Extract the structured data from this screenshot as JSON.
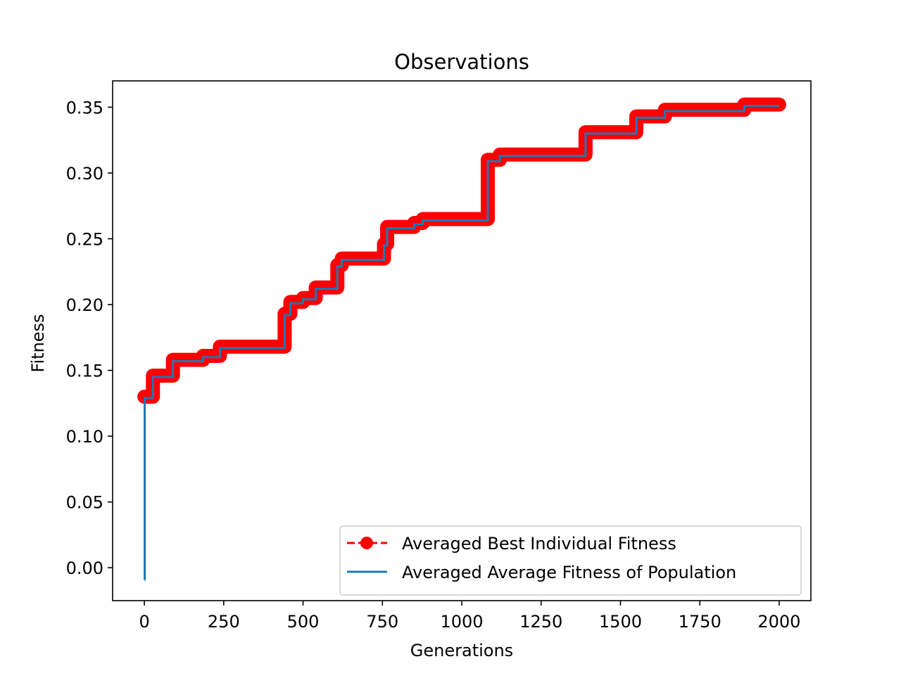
{
  "chart_data": {
    "type": "line",
    "title": "Observations",
    "xlabel": "Generations",
    "ylabel": "Fitness",
    "xlim": [
      -100,
      2100
    ],
    "ylim": [
      -0.025,
      0.37
    ],
    "x_ticks": [
      0,
      250,
      500,
      750,
      1000,
      1250,
      1500,
      1750,
      2000
    ],
    "x_tick_labels": [
      "0",
      "250",
      "500",
      "750",
      "1000",
      "1250",
      "1500",
      "1750",
      "2000"
    ],
    "y_ticks": [
      0.0,
      0.05,
      0.1,
      0.15,
      0.2,
      0.25,
      0.3,
      0.35
    ],
    "y_tick_labels": [
      "0.00",
      "0.05",
      "0.10",
      "0.15",
      "0.20",
      "0.25",
      "0.30",
      "0.35"
    ],
    "grid": false,
    "legend_position": "lower-right",
    "series": [
      {
        "name": "Averaged Best Individual Fitness",
        "style": "dashed-with-circle-markers",
        "color": "#ff0000",
        "steps": [
          [
            0,
            0.13
          ],
          [
            27,
            0.146
          ],
          [
            90,
            0.158
          ],
          [
            185,
            0.161
          ],
          [
            238,
            0.168
          ],
          [
            442,
            0.193
          ],
          [
            460,
            0.202
          ],
          [
            500,
            0.205
          ],
          [
            540,
            0.213
          ],
          [
            608,
            0.23
          ],
          [
            622,
            0.235
          ],
          [
            755,
            0.246
          ],
          [
            765,
            0.259
          ],
          [
            850,
            0.262
          ],
          [
            877,
            0.265
          ],
          [
            1082,
            0.31
          ],
          [
            1120,
            0.314
          ],
          [
            1390,
            0.331
          ],
          [
            1550,
            0.343
          ],
          [
            1640,
            0.348
          ],
          [
            1890,
            0.352
          ],
          [
            2000,
            0.352
          ]
        ]
      },
      {
        "name": "Averaged Average Fitness of Population",
        "style": "solid",
        "color": "#1f77b4",
        "steps": [
          [
            0,
            -0.009
          ],
          [
            1,
            0.129
          ],
          [
            27,
            0.145
          ],
          [
            90,
            0.157
          ],
          [
            185,
            0.16
          ],
          [
            238,
            0.167
          ],
          [
            442,
            0.192
          ],
          [
            460,
            0.201
          ],
          [
            500,
            0.204
          ],
          [
            540,
            0.212
          ],
          [
            608,
            0.229
          ],
          [
            622,
            0.234
          ],
          [
            755,
            0.245
          ],
          [
            765,
            0.258
          ],
          [
            850,
            0.261
          ],
          [
            877,
            0.264
          ],
          [
            1082,
            0.309
          ],
          [
            1120,
            0.313
          ],
          [
            1390,
            0.33
          ],
          [
            1550,
            0.342
          ],
          [
            1640,
            0.347
          ],
          [
            1890,
            0.351
          ],
          [
            2000,
            0.351
          ]
        ]
      }
    ]
  }
}
